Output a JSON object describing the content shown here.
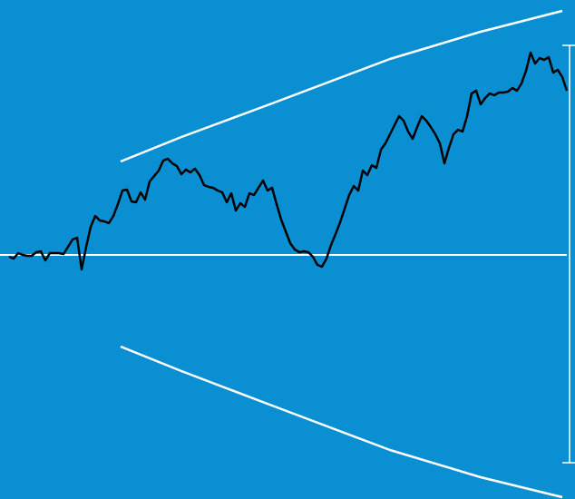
{
  "chart_data": {
    "type": "line",
    "background": "#0b8fd3",
    "xlim": [
      0,
      634
    ],
    "ylim": [
      -269,
      281
    ],
    "baseline": 0,
    "series": [
      {
        "color": "#000000",
        "x": [
          10,
          15,
          20,
          25,
          30,
          35,
          40,
          45,
          50,
          55,
          60,
          65,
          70,
          75,
          80,
          85,
          90,
          95,
          100,
          105,
          110,
          115,
          120,
          125,
          130,
          135,
          140,
          145,
          150,
          155,
          160,
          165,
          170,
          175,
          180,
          185,
          190,
          195,
          200,
          205,
          210,
          215,
          220,
          225,
          230,
          235,
          240,
          245,
          250,
          255,
          260,
          265,
          270,
          275,
          280,
          285,
          290,
          295,
          300,
          305,
          310,
          315,
          320,
          325,
          330,
          335,
          340,
          345,
          350,
          355,
          360,
          365,
          370,
          375,
          380,
          385,
          390,
          395,
          400,
          405,
          410,
          415,
          420,
          425,
          430,
          435,
          440,
          445,
          450,
          455,
          460,
          465,
          470,
          475,
          480,
          485,
          490,
          495,
          500,
          505,
          510,
          515,
          520,
          525,
          530,
          535,
          540,
          545,
          550,
          555,
          560,
          565,
          570,
          575,
          580,
          585,
          590,
          595,
          600,
          605,
          610,
          615,
          620,
          625
        ],
        "values": [
          -2,
          -4,
          2,
          0,
          -1,
          -1,
          3,
          4,
          -6,
          2,
          2,
          2,
          1,
          9,
          17,
          19,
          -16,
          9,
          31,
          43,
          38,
          37,
          35,
          43,
          56,
          71,
          72,
          59,
          58,
          69,
          61,
          81,
          87,
          93,
          104,
          106,
          101,
          98,
          89,
          94,
          91,
          95,
          88,
          77,
          75,
          74,
          71,
          69,
          58,
          68,
          49,
          57,
          53,
          68,
          66,
          74,
          82,
          71,
          74,
          56,
          39,
          26,
          13,
          6,
          3,
          4,
          3,
          -2,
          -11,
          -13,
          -4,
          11,
          23,
          36,
          51,
          66,
          76,
          71,
          93,
          88,
          99,
          96,
          116,
          123,
          133,
          143,
          153,
          148,
          136,
          128,
          141,
          153,
          148,
          141,
          133,
          123,
          101,
          118,
          133,
          138,
          136,
          153,
          178,
          181,
          166,
          173,
          178,
          176,
          179,
          179,
          180,
          184,
          181,
          189,
          203,
          223,
          211,
          217,
          215,
          218,
          201,
          204,
          196,
          181
        ]
      },
      {
        "color": "#ffffff",
        "x": [
          133,
          200,
          300,
          430,
          530,
          620
        ],
        "values": [
          103,
          130,
          167,
          216,
          246,
          269
        ]
      },
      {
        "color": "#ffffff",
        "x": [
          133,
          200,
          300,
          430,
          530,
          620
        ],
        "values": [
          -101,
          -128,
          -166,
          -215,
          -245,
          -267
        ]
      }
    ],
    "bracket": [
      231,
      -229
    ]
  }
}
